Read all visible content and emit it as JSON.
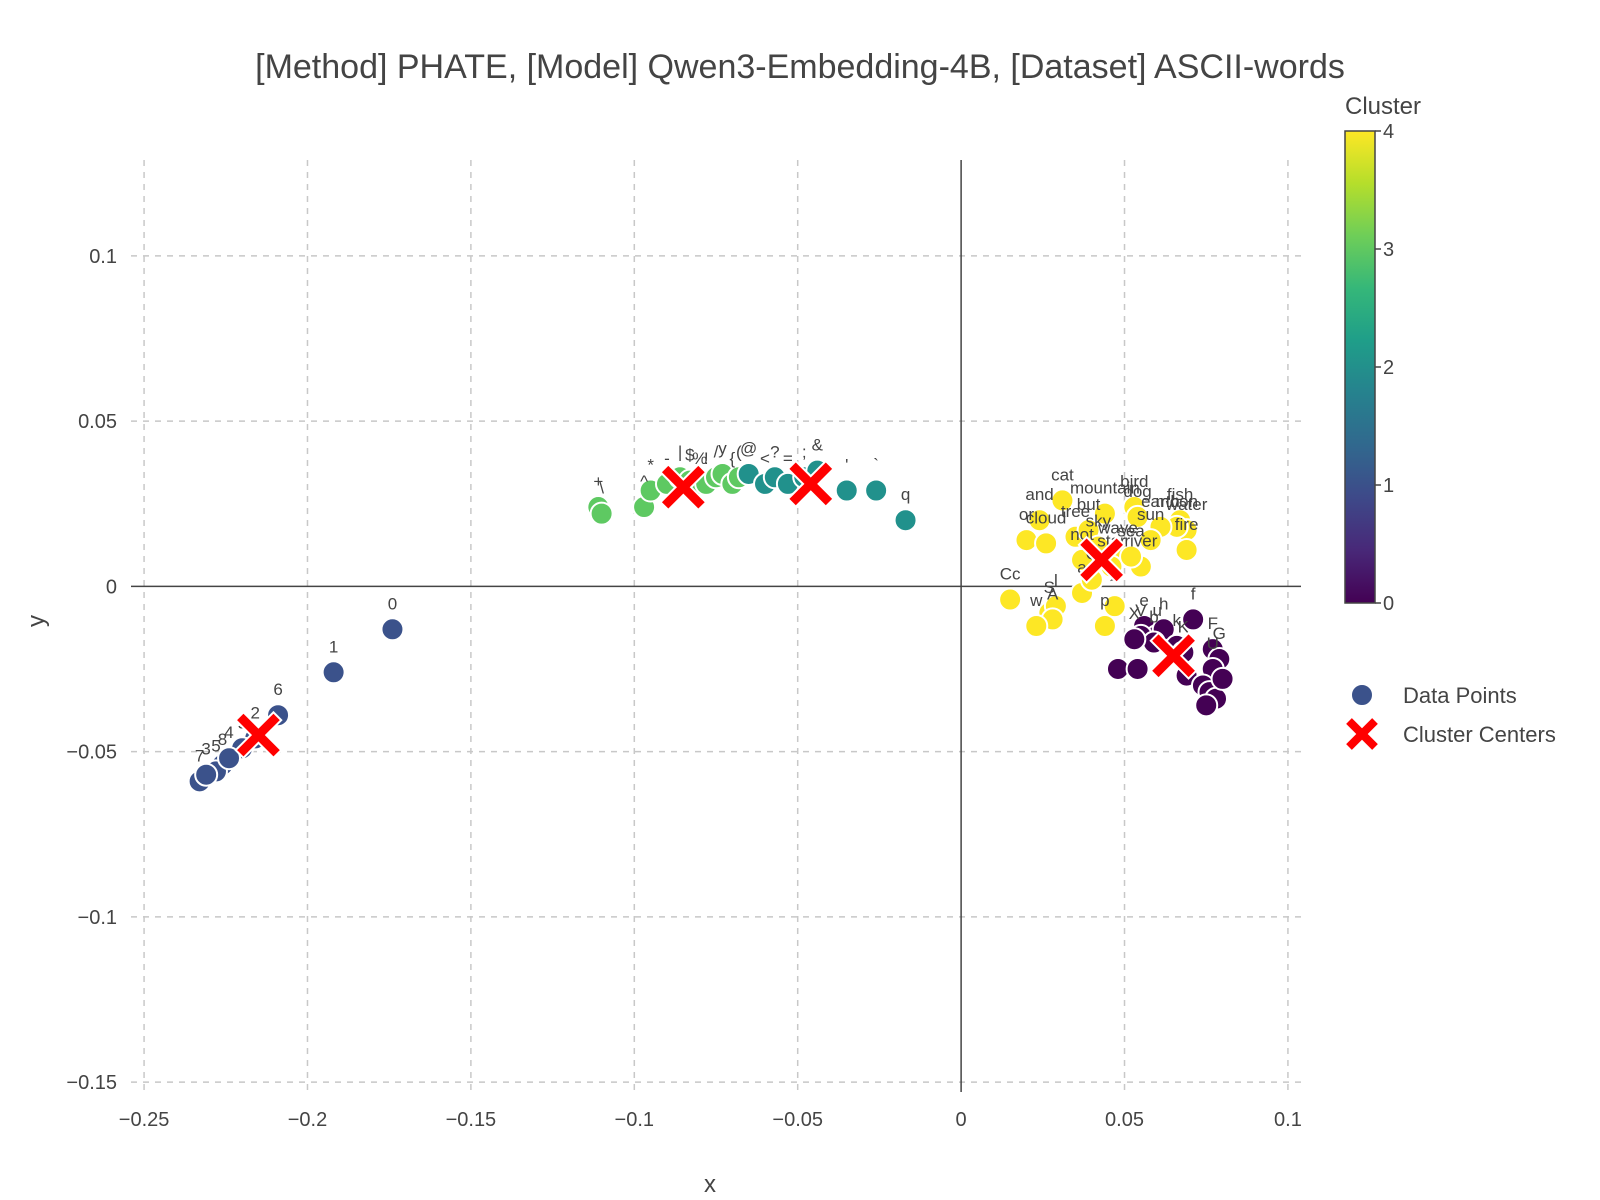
{
  "chart_data": {
    "type": "scatter",
    "title": "[Method] PHATE, [Model] Qwen3-Embedding-4B, [Dataset] ASCII-words",
    "xlabel": "x",
    "ylabel": "y",
    "xlim": [
      -0.254,
      0.104
    ],
    "ylim": [
      -0.153,
      0.129
    ],
    "x_ticks": [
      -0.25,
      -0.2,
      -0.15,
      -0.1,
      -0.05,
      0,
      0.05,
      0.1
    ],
    "x_tick_labels": [
      "−0.25",
      "−0.2",
      "−0.15",
      "−0.1",
      "−0.05",
      "0",
      "0.05",
      "0.1"
    ],
    "y_ticks": [
      -0.15,
      -0.1,
      -0.05,
      0,
      0.05,
      0.1
    ],
    "y_tick_labels": [
      "−0.15",
      "−0.1",
      "−0.05",
      "0",
      "0.05",
      "0.1"
    ],
    "grid": true,
    "legend": {
      "placement": "right",
      "items": [
        {
          "label": "Data Points",
          "marker": "circle",
          "color": "#3b528b"
        },
        {
          "label": "Cluster Centers",
          "marker": "x",
          "color": "#ff0000"
        }
      ]
    },
    "colorbar": {
      "title": "Cluster",
      "min": 0,
      "max": 4,
      "tick_labels": [
        "0",
        "1",
        "2",
        "3",
        "4"
      ],
      "colors": [
        "#440154",
        "#3b528b",
        "#21918c",
        "#5ec962",
        "#fde725"
      ]
    },
    "cluster_centers": [
      {
        "cluster": 1,
        "x": -0.215,
        "y": -0.045
      },
      {
        "cluster": 3,
        "x": -0.085,
        "y": 0.03
      },
      {
        "cluster": 2,
        "x": -0.046,
        "y": 0.031
      },
      {
        "cluster": 4,
        "x": 0.043,
        "y": 0.008
      },
      {
        "cluster": 0,
        "x": 0.065,
        "y": -0.021
      }
    ],
    "points": [
      {
        "x": -0.174,
        "y": -0.013,
        "c": 1,
        "label": "0"
      },
      {
        "x": -0.192,
        "y": -0.026,
        "c": 1,
        "label": "1"
      },
      {
        "x": -0.209,
        "y": -0.039,
        "c": 1,
        "label": "6"
      },
      {
        "x": -0.216,
        "y": -0.046,
        "c": 1,
        "label": "2"
      },
      {
        "x": -0.22,
        "y": -0.049,
        "c": 1,
        "label": "9"
      },
      {
        "x": -0.226,
        "y": -0.054,
        "c": 1,
        "label": "8"
      },
      {
        "x": -0.228,
        "y": -0.056,
        "c": 1,
        "label": "5"
      },
      {
        "x": -0.233,
        "y": -0.059,
        "c": 1,
        "label": "7"
      },
      {
        "x": -0.231,
        "y": -0.057,
        "c": 1,
        "label": "3"
      },
      {
        "x": -0.224,
        "y": -0.052,
        "c": 1,
        "label": "4"
      },
      {
        "x": -0.111,
        "y": 0.024,
        "c": 3,
        "label": "+"
      },
      {
        "x": -0.11,
        "y": 0.022,
        "c": 3,
        "label": "\\"
      },
      {
        "x": -0.097,
        "y": 0.024,
        "c": 3,
        "label": "^"
      },
      {
        "x": -0.095,
        "y": 0.029,
        "c": 3,
        "label": "*"
      },
      {
        "x": -0.09,
        "y": 0.031,
        "c": 3,
        "label": "-"
      },
      {
        "x": -0.086,
        "y": 0.033,
        "c": 3,
        "label": "|"
      },
      {
        "x": -0.083,
        "y": 0.032,
        "c": 3,
        "label": "$"
      },
      {
        "x": -0.08,
        "y": 0.031,
        "c": 3,
        "label": "%"
      },
      {
        "x": -0.078,
        "y": 0.031,
        "c": 3,
        "label": "!"
      },
      {
        "x": -0.075,
        "y": 0.033,
        "c": 3,
        "label": "/"
      },
      {
        "x": -0.073,
        "y": 0.034,
        "c": 3,
        "label": "y"
      },
      {
        "x": -0.07,
        "y": 0.031,
        "c": 3,
        "label": "{"
      },
      {
        "x": -0.068,
        "y": 0.033,
        "c": 3,
        "label": "("
      },
      {
        "x": -0.065,
        "y": 0.034,
        "c": 2,
        "label": "@"
      },
      {
        "x": -0.06,
        "y": 0.031,
        "c": 2,
        "label": "<"
      },
      {
        "x": -0.057,
        "y": 0.033,
        "c": 2,
        "label": "?"
      },
      {
        "x": -0.053,
        "y": 0.031,
        "c": 2,
        "label": "="
      },
      {
        "x": -0.048,
        "y": 0.033,
        "c": 2,
        "label": ";"
      },
      {
        "x": -0.044,
        "y": 0.035,
        "c": 2,
        "label": "&"
      },
      {
        "x": -0.035,
        "y": 0.029,
        "c": 2,
        "label": "'"
      },
      {
        "x": -0.026,
        "y": 0.029,
        "c": 2,
        "label": "`"
      },
      {
        "x": -0.017,
        "y": 0.02,
        "c": 2,
        "label": "q"
      },
      {
        "x": 0.031,
        "y": 0.026,
        "c": 4,
        "label": "cat"
      },
      {
        "x": 0.053,
        "y": 0.024,
        "c": 4,
        "label": "bird"
      },
      {
        "x": 0.054,
        "y": 0.021,
        "c": 4,
        "label": "dog"
      },
      {
        "x": 0.044,
        "y": 0.022,
        "c": 4,
        "label": "mountain"
      },
      {
        "x": 0.067,
        "y": 0.02,
        "c": 4,
        "label": "fish"
      },
      {
        "x": 0.069,
        "y": 0.017,
        "c": 4,
        "label": "water"
      },
      {
        "x": 0.066,
        "y": 0.018,
        "c": 4,
        "label": "moon"
      },
      {
        "x": 0.061,
        "y": 0.018,
        "c": 4,
        "label": "earth"
      },
      {
        "x": 0.069,
        "y": 0.011,
        "c": 4,
        "label": "fire"
      },
      {
        "x": 0.024,
        "y": 0.02,
        "c": 4,
        "label": "and"
      },
      {
        "x": 0.02,
        "y": 0.014,
        "c": 4,
        "label": "or"
      },
      {
        "x": 0.026,
        "y": 0.013,
        "c": 4,
        "label": "cloud"
      },
      {
        "x": 0.035,
        "y": 0.015,
        "c": 4,
        "label": "tree"
      },
      {
        "x": 0.039,
        "y": 0.017,
        "c": 4,
        "label": "but"
      },
      {
        "x": 0.042,
        "y": 0.012,
        "c": 4,
        "label": "sky"
      },
      {
        "x": 0.048,
        "y": 0.01,
        "c": 4,
        "label": "wave"
      },
      {
        "x": 0.058,
        "y": 0.014,
        "c": 4,
        "label": "sun"
      },
      {
        "x": 0.037,
        "y": 0.008,
        "c": 4,
        "label": "not"
      },
      {
        "x": 0.046,
        "y": 0.006,
        "c": 4,
        "label": "star"
      },
      {
        "x": 0.055,
        "y": 0.006,
        "c": 4,
        "label": "river"
      },
      {
        "x": 0.052,
        "y": 0.009,
        "c": 4,
        "label": "sea"
      },
      {
        "x": 0.015,
        "y": -0.004,
        "c": 4,
        "label": "Cc"
      },
      {
        "x": 0.027,
        "y": -0.008,
        "c": 4,
        "label": "S"
      },
      {
        "x": 0.029,
        "y": -0.006,
        "c": 4,
        "label": "l"
      },
      {
        "x": 0.028,
        "y": -0.01,
        "c": 4,
        "label": "A"
      },
      {
        "x": 0.023,
        "y": -0.012,
        "c": 4,
        "label": "w"
      },
      {
        "x": 0.037,
        "y": -0.002,
        "c": 4,
        "label": "a"
      },
      {
        "x": 0.044,
        "y": -0.012,
        "c": 4,
        "label": "p"
      },
      {
        "x": 0.04,
        "y": 0.002,
        "c": 4,
        "label": "C"
      },
      {
        "x": 0.047,
        "y": -0.006,
        "c": 4,
        "label": "~"
      },
      {
        "x": 0.071,
        "y": -0.01,
        "c": 0,
        "label": "f"
      },
      {
        "x": 0.077,
        "y": -0.019,
        "c": 0,
        "label": "F"
      },
      {
        "x": 0.079,
        "y": -0.022,
        "c": 0,
        "label": "G"
      },
      {
        "x": 0.077,
        "y": -0.025,
        "c": 0,
        "label": "U"
      },
      {
        "x": 0.056,
        "y": -0.012,
        "c": 0,
        "label": "e"
      },
      {
        "x": 0.06,
        "y": -0.015,
        "c": 0,
        "label": "u"
      },
      {
        "x": 0.062,
        "y": -0.013,
        "c": 0,
        "label": "h"
      },
      {
        "x": 0.066,
        "y": -0.018,
        "c": 0,
        "label": "k"
      },
      {
        "x": 0.055,
        "y": -0.015,
        "c": 0,
        "label": "V"
      },
      {
        "x": 0.059,
        "y": -0.017,
        "c": 0,
        "label": "b"
      },
      {
        "x": 0.068,
        "y": -0.02,
        "c": 0,
        "label": "K"
      },
      {
        "x": 0.053,
        "y": -0.016,
        "c": 0,
        "label": "X"
      },
      {
        "x": 0.048,
        "y": -0.025,
        "c": 0,
        "label": ""
      },
      {
        "x": 0.054,
        "y": -0.025,
        "c": 0,
        "label": ""
      },
      {
        "x": 0.069,
        "y": -0.027,
        "c": 0,
        "label": ""
      },
      {
        "x": 0.074,
        "y": -0.03,
        "c": 0,
        "label": ""
      },
      {
        "x": 0.076,
        "y": -0.032,
        "c": 0,
        "label": ""
      },
      {
        "x": 0.078,
        "y": -0.034,
        "c": 0,
        "label": ""
      },
      {
        "x": 0.08,
        "y": -0.028,
        "c": 0,
        "label": ""
      },
      {
        "x": 0.075,
        "y": -0.036,
        "c": 0,
        "label": ""
      }
    ]
  }
}
